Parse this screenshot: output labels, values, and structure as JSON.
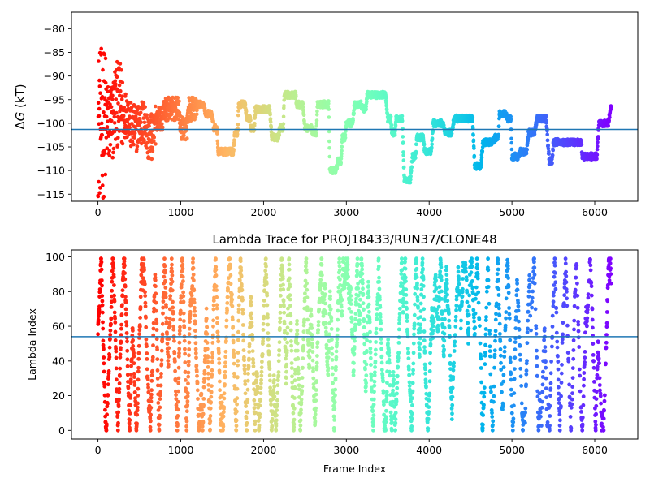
{
  "chart_data": [
    {
      "type": "scatter",
      "title": "",
      "xlabel": "",
      "ylabel": "ΔG (kT)",
      "ylabel_parts": {
        "delta": "Δ",
        "symbol": "G",
        "unit": " (kT)"
      },
      "xlim": [
        -320,
        6520
      ],
      "ylim": [
        -116.5,
        -76.5
      ],
      "xticks": [
        0,
        1000,
        2000,
        3000,
        4000,
        5000,
        6000
      ],
      "xtick_labels": [
        "0",
        "1000",
        "2000",
        "3000",
        "4000",
        "5000",
        "6000"
      ],
      "yticks": [
        -80,
        -85,
        -90,
        -95,
        -100,
        -105,
        -110,
        -115
      ],
      "ytick_labels": [
        "−80",
        "−85",
        "−90",
        "−95",
        "−100",
        "−105",
        "−110",
        "−115"
      ],
      "hline": -101.3,
      "hline_color": "#1f77b4",
      "colormap": "rainbow (reversed: red at frame 0 → violet at last frame)",
      "n_frames": 6200,
      "trace_anchors": [
        {
          "x": 0,
          "y": -100
        },
        {
          "x": 60,
          "y": -100
        },
        {
          "x": 120,
          "y": -100
        },
        {
          "x": 200,
          "y": -96
        },
        {
          "x": 300,
          "y": -98
        },
        {
          "x": 400,
          "y": -101
        },
        {
          "x": 500,
          "y": -100
        },
        {
          "x": 600,
          "y": -103
        },
        {
          "x": 700,
          "y": -99
        },
        {
          "x": 800,
          "y": -97
        },
        {
          "x": 900,
          "y": -97
        },
        {
          "x": 1000,
          "y": -101
        },
        {
          "x": 1100,
          "y": -97
        },
        {
          "x": 1200,
          "y": -96
        },
        {
          "x": 1300,
          "y": -98
        },
        {
          "x": 1400,
          "y": -101
        },
        {
          "x": 1450,
          "y": -106
        },
        {
          "x": 1600,
          "y": -106
        },
        {
          "x": 1650,
          "y": -102
        },
        {
          "x": 1700,
          "y": -96
        },
        {
          "x": 1800,
          "y": -99
        },
        {
          "x": 1850,
          "y": -101
        },
        {
          "x": 1900,
          "y": -97
        },
        {
          "x": 2000,
          "y": -97
        },
        {
          "x": 2100,
          "y": -103
        },
        {
          "x": 2200,
          "y": -101
        },
        {
          "x": 2250,
          "y": -94
        },
        {
          "x": 2350,
          "y": -94
        },
        {
          "x": 2400,
          "y": -96
        },
        {
          "x": 2500,
          "y": -101
        },
        {
          "x": 2600,
          "y": -102
        },
        {
          "x": 2650,
          "y": -96
        },
        {
          "x": 2750,
          "y": -96
        },
        {
          "x": 2800,
          "y": -110
        },
        {
          "x": 2900,
          "y": -108
        },
        {
          "x": 2950,
          "y": -103
        },
        {
          "x": 3000,
          "y": -100
        },
        {
          "x": 3100,
          "y": -96
        },
        {
          "x": 3200,
          "y": -97
        },
        {
          "x": 3250,
          "y": -94
        },
        {
          "x": 3400,
          "y": -94
        },
        {
          "x": 3500,
          "y": -99
        },
        {
          "x": 3550,
          "y": -102
        },
        {
          "x": 3600,
          "y": -99
        },
        {
          "x": 3700,
          "y": -112
        },
        {
          "x": 3800,
          "y": -107
        },
        {
          "x": 3850,
          "y": -103
        },
        {
          "x": 3950,
          "y": -106
        },
        {
          "x": 4050,
          "y": -100
        },
        {
          "x": 4200,
          "y": -102
        },
        {
          "x": 4300,
          "y": -99
        },
        {
          "x": 4450,
          "y": -99
        },
        {
          "x": 4550,
          "y": -109
        },
        {
          "x": 4650,
          "y": -104
        },
        {
          "x": 4800,
          "y": -103
        },
        {
          "x": 4850,
          "y": -98
        },
        {
          "x": 4950,
          "y": -99
        },
        {
          "x": 5000,
          "y": -107
        },
        {
          "x": 5100,
          "y": -106
        },
        {
          "x": 5200,
          "y": -102
        },
        {
          "x": 5300,
          "y": -99
        },
        {
          "x": 5450,
          "y": -108
        },
        {
          "x": 5500,
          "y": -104
        },
        {
          "x": 5800,
          "y": -104
        },
        {
          "x": 5850,
          "y": -107
        },
        {
          "x": 5950,
          "y": -107
        },
        {
          "x": 6050,
          "y": -100
        },
        {
          "x": 6200,
          "y": -96
        }
      ]
    },
    {
      "type": "scatter",
      "title": "Lambda Trace for PROJ18433/RUN37/CLONE48",
      "xlabel": "Frame Index",
      "ylabel": "Lambda Index",
      "xlim": [
        -320,
        6520
      ],
      "ylim": [
        -5,
        104
      ],
      "xticks": [
        0,
        1000,
        2000,
        3000,
        4000,
        5000,
        6000
      ],
      "xtick_labels": [
        "0",
        "1000",
        "2000",
        "3000",
        "4000",
        "5000",
        "6000"
      ],
      "yticks": [
        0,
        20,
        40,
        60,
        80,
        100
      ],
      "ytick_labels": [
        "0",
        "20",
        "40",
        "60",
        "80",
        "100"
      ],
      "hline": 54,
      "hline_color": "#1f77b4",
      "colormap": "rainbow (reversed: red at frame 0 → violet at last frame)",
      "n_frames": 6200,
      "lambda_range": [
        0,
        99
      ]
    }
  ]
}
